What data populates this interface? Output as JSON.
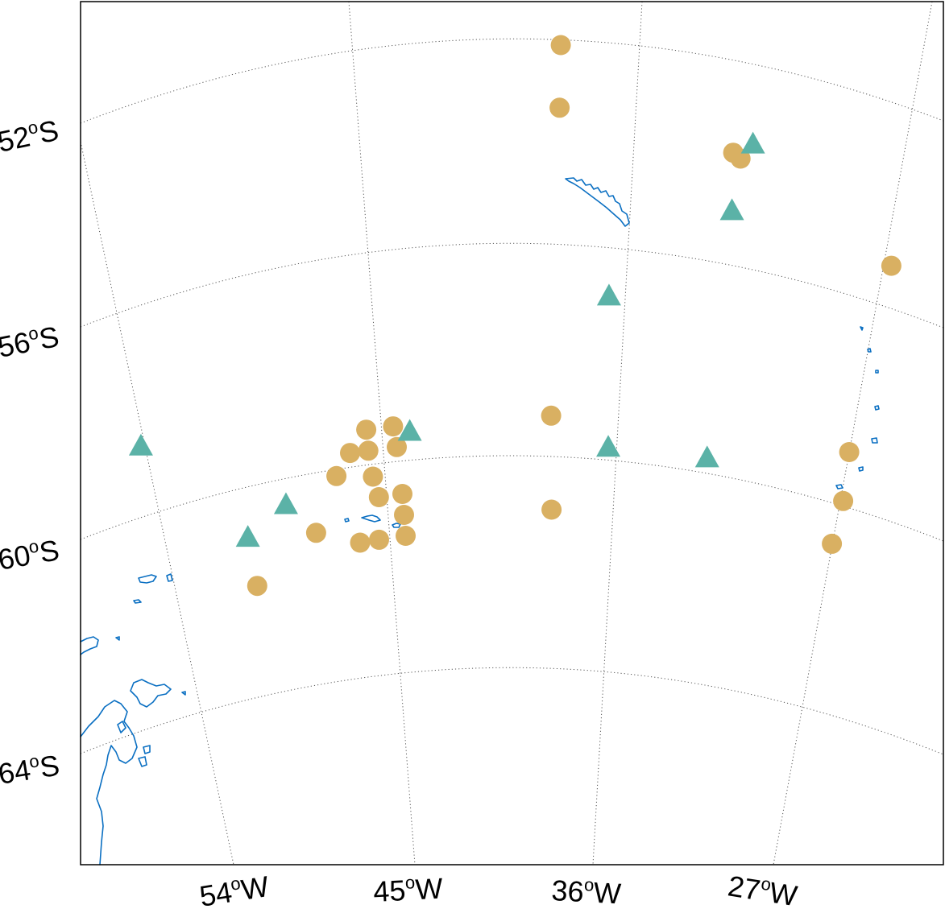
{
  "map": {
    "projection": "polar",
    "region": "Scotia Sea",
    "colors": {
      "background": "#ffffff",
      "coastline": "#0a6fc2",
      "circle_marker": "#d9b062",
      "triangle_marker": "#5bb2a7",
      "grid": "#555555",
      "frame": "#000000"
    },
    "lat_labels": [
      {
        "deg": "52",
        "sup": "o",
        "hemi": "S"
      },
      {
        "deg": "56",
        "sup": "o",
        "hemi": "S"
      },
      {
        "deg": "60",
        "sup": "o",
        "hemi": "S"
      },
      {
        "deg": "64",
        "sup": "o",
        "hemi": "S"
      }
    ],
    "lon_labels": [
      {
        "deg": "54",
        "sup": "o",
        "hemi": "W"
      },
      {
        "deg": "45",
        "sup": "o",
        "hemi": "W"
      },
      {
        "deg": "36",
        "sup": "o",
        "hemi": "W"
      },
      {
        "deg": "27",
        "sup": "o",
        "hemi": "W"
      }
    ],
    "circle_sites": [
      {
        "lon": -38.6,
        "lat": 51.3
      },
      {
        "lon": -38.6,
        "lat": 52.5
      },
      {
        "lon": -32.2,
        "lat": 53.2
      },
      {
        "lon": -31.9,
        "lat": 53.3
      },
      {
        "lon": -25.4,
        "lat": 55.1
      },
      {
        "lon": -25.5,
        "lat": 58.6
      },
      {
        "lon": -38.7,
        "lat": 58.4
      },
      {
        "lon": -46.5,
        "lat": 58.6
      },
      {
        "lon": -45.2,
        "lat": 58.6
      },
      {
        "lon": -47.4,
        "lat": 59.0
      },
      {
        "lon": -46.5,
        "lat": 59.0
      },
      {
        "lon": -45.1,
        "lat": 59.0
      },
      {
        "lon": -48.2,
        "lat": 59.4
      },
      {
        "lon": -46.4,
        "lat": 59.5
      },
      {
        "lon": -46.2,
        "lat": 59.9
      },
      {
        "lon": -45.0,
        "lat": 59.9
      },
      {
        "lon": -45.0,
        "lat": 60.3
      },
      {
        "lon": -38.6,
        "lat": 60.2
      },
      {
        "lon": -25.3,
        "lat": 59.5
      },
      {
        "lon": -25.4,
        "lat": 60.3
      },
      {
        "lon": -49.6,
        "lat": 60.4
      },
      {
        "lon": -47.4,
        "lat": 60.7
      },
      {
        "lon": -46.4,
        "lat": 60.7
      },
      {
        "lon": -45.0,
        "lat": 60.7
      },
      {
        "lon": -53.1,
        "lat": 61.2
      }
    ],
    "triangle_sites": [
      {
        "lon": -31.5,
        "lat": 53.0
      },
      {
        "lon": -32.0,
        "lat": 54.3
      },
      {
        "lon": -36.6,
        "lat": 56.1
      },
      {
        "lon": -44.5,
        "lat": 58.7
      },
      {
        "lon": -36.3,
        "lat": 59.0
      },
      {
        "lon": -31.8,
        "lat": 59.0
      },
      {
        "lon": -57.3,
        "lat": 58.4
      },
      {
        "lon": -50.9,
        "lat": 59.8
      },
      {
        "lon": -53.1,
        "lat": 60.3
      }
    ]
  }
}
